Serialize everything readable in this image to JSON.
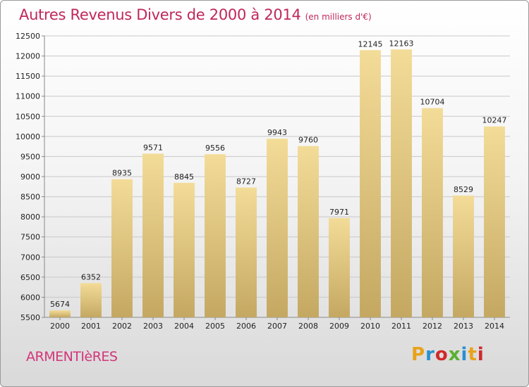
{
  "header": {
    "title": "Autres Revenus Divers de 2000 à 2014",
    "subtitle": "(en milliers d'€)"
  },
  "footer": {
    "city": "ARMENTIèRES",
    "logo": "Proxiti",
    "logo_colors": [
      "#e8a21a",
      "#2a8fd0",
      "#d02a2a",
      "#58b030",
      "#2a8fd0",
      "#e8a21a",
      "#d02a2a"
    ]
  },
  "colors": {
    "bar_top": "#f3dc98",
    "bar_bottom": "#c4a862",
    "grid": "#c8c8c8",
    "axis": "#888888"
  },
  "chart_data": {
    "type": "bar",
    "title": "Autres Revenus Divers de 2000 à 2014",
    "subtitle": "(en milliers d'€)",
    "categories": [
      "2000",
      "2001",
      "2002",
      "2003",
      "2004",
      "2005",
      "2006",
      "2007",
      "2008",
      "2009",
      "2010",
      "2011",
      "2012",
      "2013",
      "2014"
    ],
    "values": [
      5674,
      6352,
      8935,
      9571,
      8845,
      9556,
      8727,
      9943,
      9760,
      7971,
      12145,
      12163,
      10704,
      8529,
      10247
    ],
    "ylim": [
      5500,
      12500
    ],
    "yticks": [
      5500,
      6000,
      6500,
      7000,
      7500,
      8000,
      8500,
      9000,
      9500,
      10000,
      10500,
      11000,
      11500,
      12000,
      12500
    ],
    "grid": true,
    "xlabel": "",
    "ylabel": ""
  }
}
